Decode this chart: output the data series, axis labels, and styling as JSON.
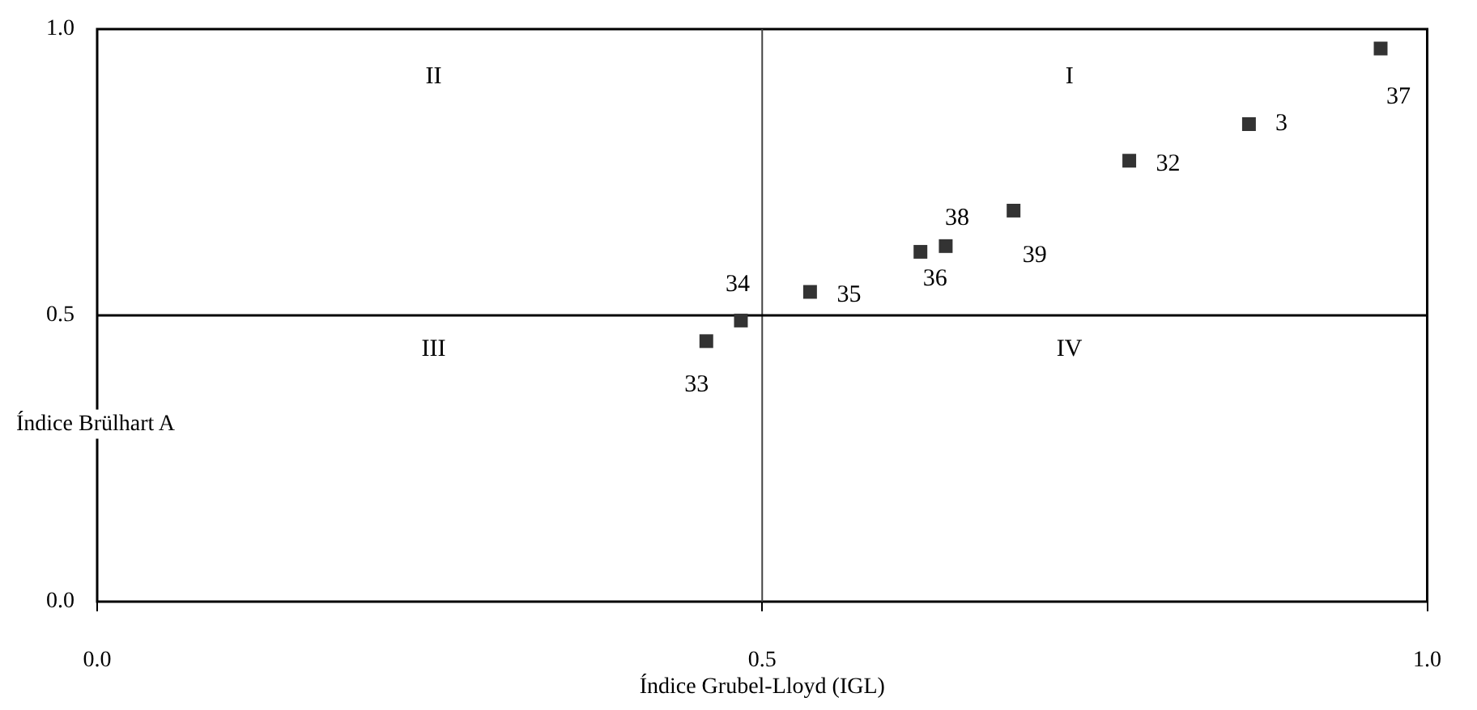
{
  "chart_data": {
    "type": "scatter",
    "xlabel": "Índice Grubel-Lloyd (IGL)",
    "ylabel": "Índice Brülhart A",
    "series": [
      {
        "color": "#333333",
        "x": [
          0.965,
          0.866,
          0.776,
          0.689,
          0.638,
          0.619,
          0.536,
          0.484,
          0.458
        ],
        "values": [
          0.966,
          0.834,
          0.77,
          0.683,
          0.621,
          0.611,
          0.541,
          0.491,
          0.455
        ]
      }
    ],
    "xlim": [
      0,
      1
    ],
    "ylim": [
      0,
      1
    ],
    "xticks": [
      {
        "value": 0,
        "label": "0.0"
      },
      {
        "value": 0.5,
        "label": "0.5"
      },
      {
        "value": 1,
        "label": "1.0"
      }
    ],
    "yticks": [
      {
        "value": 0,
        "label": "0.0"
      },
      {
        "value": 0.5,
        "label": "0.5"
      },
      {
        "value": 1,
        "label": "1.0"
      }
    ],
    "ref_lines": [
      {
        "axis": "x",
        "value": 0.5,
        "color": "#444444"
      },
      {
        "axis": "y",
        "value": 0.5,
        "color": "#000000"
      }
    ],
    "annotations": [
      {
        "text": "37",
        "x": 0.965,
        "y": 0.966
      },
      {
        "text": "3",
        "x": 0.866,
        "y": 0.834
      },
      {
        "text": "32",
        "x": 0.776,
        "y": 0.77
      },
      {
        "text": "38",
        "x": 0.638,
        "y": 0.621
      },
      {
        "text": "39",
        "x": 0.689,
        "y": 0.683
      },
      {
        "text": "36",
        "x": 0.619,
        "y": 0.611
      },
      {
        "text": "35",
        "x": 0.536,
        "y": 0.541
      },
      {
        "text": "34",
        "x": 0.484,
        "y": 0.491
      },
      {
        "text": "33",
        "x": 0.458,
        "y": 0.455
      },
      "II",
      "I",
      "III",
      "IV"
    ],
    "grid": false,
    "legend": false,
    "marker": "square"
  }
}
